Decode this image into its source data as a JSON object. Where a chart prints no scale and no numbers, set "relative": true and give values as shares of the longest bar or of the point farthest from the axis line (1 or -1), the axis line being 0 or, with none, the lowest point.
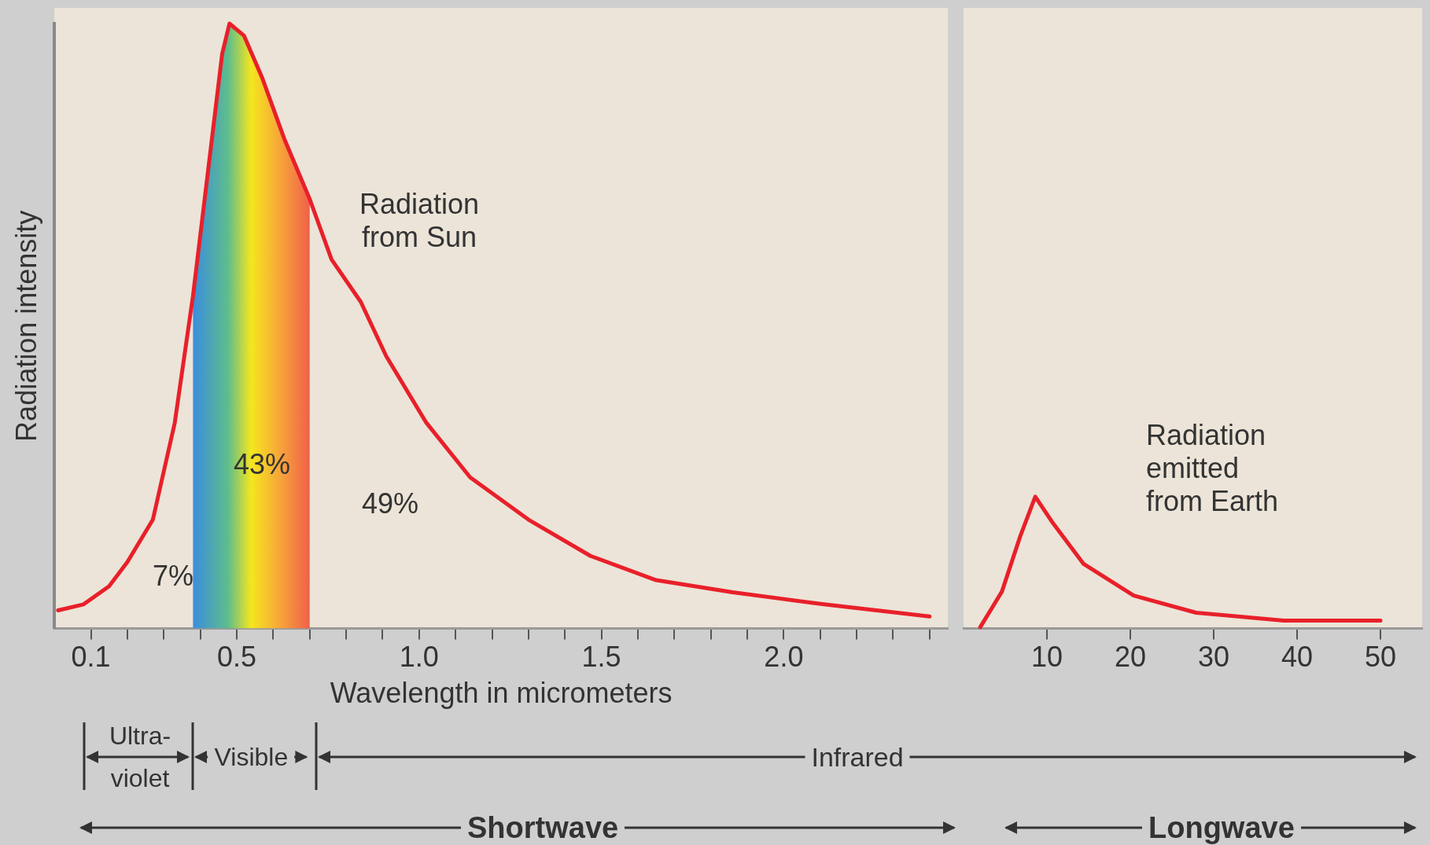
{
  "chart_data": [
    {
      "type": "line",
      "relative": true,
      "ylabel": "Radiation intensity",
      "xlabel": "Wavelength in micrometers",
      "xlim": [
        0,
        2.45
      ],
      "xticks": [
        0.1,
        {
          "value": 0.2,
          "label": null
        },
        {
          "value": 0.3,
          "label": null
        },
        {
          "value": 0.4,
          "label": null
        },
        0.5,
        {
          "value": 0.6,
          "label": null
        },
        {
          "value": 0.7,
          "label": null
        },
        {
          "value": 0.8,
          "label": null
        },
        {
          "value": 0.9,
          "label": null
        },
        {
          "value": 1,
          "label": "1.0"
        },
        {
          "value": 1.1,
          "label": null
        },
        {
          "value": 1.2,
          "label": null
        },
        {
          "value": 1.3,
          "label": null
        },
        {
          "value": 1.4,
          "label": null
        },
        1.5,
        {
          "value": 1.6,
          "label": null
        },
        {
          "value": 1.7,
          "label": null
        },
        {
          "value": 1.8,
          "label": null
        },
        {
          "value": 1.9,
          "label": null
        },
        {
          "value": 2,
          "label": "2.0"
        },
        {
          "value": 2.1,
          "label": null
        },
        {
          "value": 2.2,
          "label": null
        },
        {
          "value": 2.3,
          "label": null
        },
        {
          "value": 2.4,
          "label": null
        }
      ],
      "series": [
        {
          "color": "#e8202a",
          "x": [
            0.01,
            0.08,
            0.15,
            0.2,
            0.27,
            0.33,
            0.38,
            0.42,
            0.46,
            0.48,
            0.52,
            0.57,
            0.63,
            0.7,
            0.76,
            0.84,
            0.91,
            1.02,
            1.14,
            1.3,
            1.47,
            1.65,
            1.86,
            2.11,
            2.4
          ],
          "values": [
            0.03,
            0.04,
            0.07,
            0.11,
            0.18,
            0.34,
            0.55,
            0.75,
            0.95,
            1,
            0.98,
            0.91,
            0.81,
            0.71,
            0.61,
            0.54,
            0.45,
            0.34,
            0.25,
            0.18,
            0.12,
            0.08,
            0.06,
            0.04,
            0.02
          ]
        }
      ],
      "annotations": [
        "Radiation from Sun",
        "43%",
        "49%",
        "7%",
        "Ultra-violet",
        "Infrared",
        "Shortwave"
      ],
      "bands": [
        {
          "axis": "x",
          "from": 0.38,
          "to": 0.7,
          "label": "Visible",
          "color": "#f5e61e"
        }
      ]
    },
    {
      "type": "line",
      "relative": true,
      "xlim": [
        0,
        55
      ],
      "xticks": [
        10,
        20,
        30,
        40,
        50
      ],
      "series": [
        {
          "color": "#e8202a",
          "x": [
            2,
            4.6,
            6.8,
            8.6,
            10.6,
            14.4,
            20.4,
            27.9,
            38.4,
            50
          ],
          "values": [
            0.01,
            0.28,
            0.7,
            1,
            0.81,
            0.49,
            0.25,
            0.12,
            0.06,
            0.06
          ]
        }
      ],
      "annotations": [
        "Radiation emitted from Earth",
        "Longwave"
      ]
    }
  ]
}
